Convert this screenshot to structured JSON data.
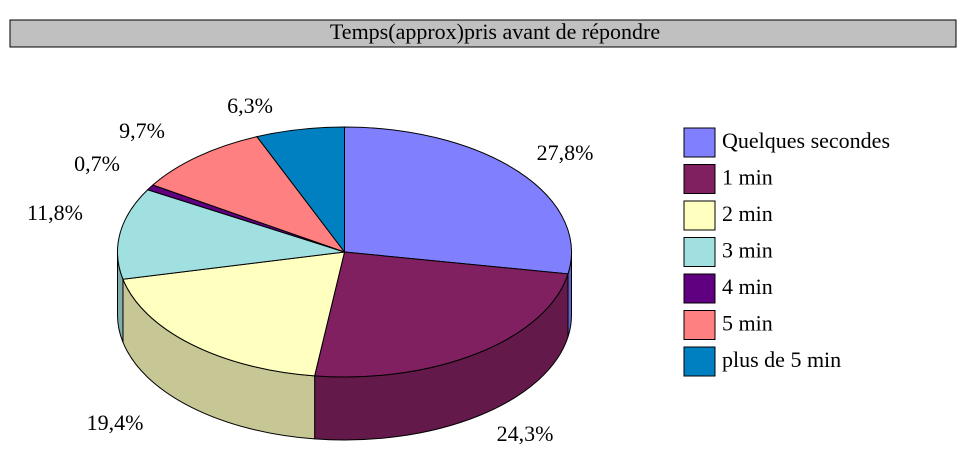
{
  "chart_data": {
    "type": "pie",
    "title": "Temps(approx)pris avant de répondre",
    "categories": [
      "Quelques secondes",
      "1 min",
      "2 min",
      "3 min",
      "4 min",
      "5 min",
      "plus de 5 min"
    ],
    "values": [
      27.8,
      24.3,
      19.4,
      11.8,
      0.7,
      9.7,
      6.3
    ],
    "value_labels": [
      "27,8%",
      "24,3%",
      "19,4%",
      "11,8%",
      "0,7%",
      "9,7%",
      "6,3%"
    ],
    "colors": [
      "#8080ff",
      "#802060",
      "#ffffc0",
      "#a0e0e0",
      "#600080",
      "#ff8080",
      "#0080c0"
    ],
    "legend": "right"
  }
}
